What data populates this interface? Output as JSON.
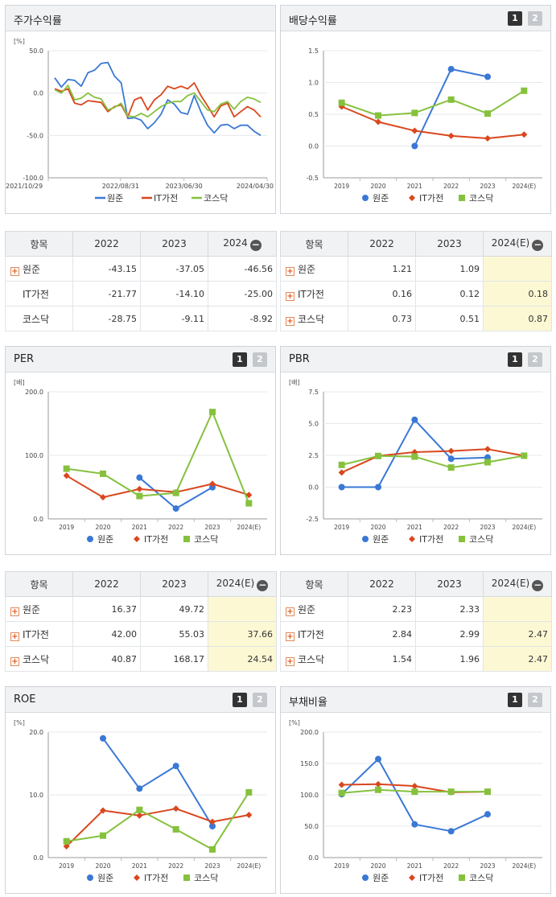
{
  "panels": {
    "stock_return": {
      "title": "주가수익률",
      "unit": "[%]"
    },
    "dividend": {
      "title": "배당수익률",
      "unit": ""
    },
    "per": {
      "title": "PER",
      "unit": "[배]"
    },
    "pbr": {
      "title": "PBR",
      "unit": "[배]"
    },
    "roe": {
      "title": "ROE",
      "unit": "[%]"
    },
    "debt": {
      "title": "부채비율",
      "unit": "[%]"
    }
  },
  "pager": {
    "one": "1",
    "two": "2"
  },
  "tables": {
    "stock_return": {
      "headers": [
        "항목",
        "2022",
        "2023",
        "2024"
      ],
      "rows": [
        {
          "name": "원준",
          "expand": true,
          "v": [
            "-43.15",
            "-37.05",
            "-46.56"
          ]
        },
        {
          "name": "IT가전",
          "expand": false,
          "v": [
            "-21.77",
            "-14.10",
            "-25.00"
          ]
        },
        {
          "name": "코스닥",
          "expand": false,
          "v": [
            "-28.75",
            "-9.11",
            "-8.92"
          ]
        }
      ]
    },
    "dividend": {
      "headers": [
        "항목",
        "2022",
        "2023",
        "2024(E)"
      ],
      "rows": [
        {
          "name": "원준",
          "expand": true,
          "v": [
            "1.21",
            "1.09",
            ""
          ]
        },
        {
          "name": "IT가전",
          "expand": true,
          "v": [
            "0.16",
            "0.12",
            "0.18"
          ]
        },
        {
          "name": "코스닥",
          "expand": true,
          "v": [
            "0.73",
            "0.51",
            "0.87"
          ]
        }
      ]
    },
    "per": {
      "headers": [
        "항목",
        "2022",
        "2023",
        "2024(E)"
      ],
      "rows": [
        {
          "name": "원준",
          "expand": true,
          "v": [
            "16.37",
            "49.72",
            ""
          ]
        },
        {
          "name": "IT가전",
          "expand": true,
          "v": [
            "42.00",
            "55.03",
            "37.66"
          ]
        },
        {
          "name": "코스닥",
          "expand": true,
          "v": [
            "40.87",
            "168.17",
            "24.54"
          ]
        }
      ]
    },
    "pbr": {
      "headers": [
        "항목",
        "2022",
        "2023",
        "2024(E)"
      ],
      "rows": [
        {
          "name": "원준",
          "expand": true,
          "v": [
            "2.23",
            "2.33",
            ""
          ]
        },
        {
          "name": "IT가전",
          "expand": true,
          "v": [
            "2.84",
            "2.99",
            "2.47"
          ]
        },
        {
          "name": "코스닥",
          "expand": true,
          "v": [
            "1.54",
            "1.96",
            "2.47"
          ]
        }
      ]
    }
  },
  "chart_data": [
    {
      "id": "stock_return",
      "type": "line",
      "ylim": [
        -100,
        50
      ],
      "yticks": [
        "50.0",
        "0.0",
        "-50.0",
        "-100.0"
      ],
      "xticks": [
        "2021/10/29",
        "2022/08/31",
        "2023/06/30",
        "2024/04/30"
      ],
      "series": [
        {
          "name": "원준",
          "color": "#3a78d6",
          "values": [
            18,
            7,
            16,
            15,
            8,
            24,
            27,
            35,
            36,
            20,
            12,
            -30,
            -29,
            -32,
            -42,
            -35,
            -25,
            -8,
            -13,
            -23,
            -25,
            -3,
            -22,
            -38,
            -47,
            -38,
            -37,
            -42,
            -38,
            -38,
            -45,
            -50
          ]
        },
        {
          "name": "IT가전",
          "color": "#d9471e",
          "values": [
            5,
            2,
            5,
            -12,
            -14,
            -9,
            -10,
            -11,
            -22,
            -16,
            -14,
            -28,
            -8,
            -5,
            -20,
            -8,
            -2,
            8,
            5,
            8,
            5,
            12,
            -3,
            -15,
            -28,
            -15,
            -12,
            -28,
            -22,
            -16,
            -20,
            -28
          ]
        },
        {
          "name": "코스닥",
          "color": "#86c13d",
          "values": [
            4,
            0,
            9,
            -8,
            -6,
            0,
            -5,
            -7,
            -20,
            -17,
            -12,
            -27,
            -28,
            -24,
            -28,
            -22,
            -16,
            -12,
            -10,
            -10,
            -3,
            0,
            -10,
            -20,
            -22,
            -13,
            -10,
            -19,
            -10,
            -5,
            -7,
            -11
          ]
        }
      ]
    },
    {
      "id": "dividend",
      "type": "line",
      "ylim": [
        -0.5,
        1.5
      ],
      "yticks": [
        "1.5",
        "1.0",
        "0.5",
        "0.0",
        "-0.5"
      ],
      "categories": [
        "2019",
        "2020",
        "2021",
        "2022",
        "2023",
        "2024(E)"
      ],
      "series": [
        {
          "name": "원준",
          "color": "#3a78d6",
          "marker": "circle",
          "values": [
            null,
            null,
            0.0,
            1.21,
            1.09,
            null
          ]
        },
        {
          "name": "IT가전",
          "color": "#d9471e",
          "marker": "diamond",
          "values": [
            0.62,
            0.38,
            0.24,
            0.16,
            0.12,
            0.18
          ]
        },
        {
          "name": "코스닥",
          "color": "#86c13d",
          "marker": "square",
          "values": [
            0.68,
            0.48,
            0.52,
            0.73,
            0.51,
            0.87
          ]
        }
      ]
    },
    {
      "id": "per",
      "type": "line",
      "ylim": [
        0,
        200
      ],
      "yticks": [
        "200.0",
        "100.0",
        "0.0"
      ],
      "categories": [
        "2019",
        "2020",
        "2021",
        "2022",
        "2023",
        "2024(E)"
      ],
      "series": [
        {
          "name": "원준",
          "color": "#3a78d6",
          "marker": "circle",
          "values": [
            null,
            null,
            65,
            16.37,
            49.72,
            null
          ]
        },
        {
          "name": "IT가전",
          "color": "#d9471e",
          "marker": "diamond",
          "values": [
            68,
            34,
            47,
            42.0,
            55.03,
            37.66
          ]
        },
        {
          "name": "코스닥",
          "color": "#86c13d",
          "marker": "square",
          "values": [
            79,
            71,
            36,
            40.87,
            168.17,
            24.54
          ]
        }
      ]
    },
    {
      "id": "pbr",
      "type": "line",
      "ylim": [
        -2.5,
        7.5
      ],
      "yticks": [
        "7.5",
        "5.0",
        "2.5",
        "0.0",
        "-2.5"
      ],
      "categories": [
        "2019",
        "2020",
        "2021",
        "2022",
        "2023",
        "2024(E)"
      ],
      "series": [
        {
          "name": "원준",
          "color": "#3a78d6",
          "marker": "circle",
          "values": [
            0.0,
            0.0,
            5.3,
            2.23,
            2.33,
            null
          ]
        },
        {
          "name": "IT가전",
          "color": "#d9471e",
          "marker": "diamond",
          "values": [
            1.15,
            2.45,
            2.75,
            2.84,
            2.99,
            2.47
          ]
        },
        {
          "name": "코스닥",
          "color": "#86c13d",
          "marker": "square",
          "values": [
            1.75,
            2.45,
            2.4,
            1.54,
            1.96,
            2.47
          ]
        }
      ]
    },
    {
      "id": "roe",
      "type": "line",
      "ylim": [
        0,
        20
      ],
      "yticks": [
        "20.0",
        "10.0",
        "0.0"
      ],
      "categories": [
        "2019",
        "2020",
        "2021",
        "2022",
        "2023",
        "2024(E)"
      ],
      "series": [
        {
          "name": "원준",
          "color": "#3a78d6",
          "marker": "circle",
          "values": [
            null,
            19.0,
            11.0,
            14.6,
            5.0,
            null
          ]
        },
        {
          "name": "IT가전",
          "color": "#d9471e",
          "marker": "diamond",
          "values": [
            1.8,
            7.5,
            6.7,
            7.8,
            5.7,
            6.8
          ]
        },
        {
          "name": "코스닥",
          "color": "#86c13d",
          "marker": "square",
          "values": [
            2.6,
            3.5,
            7.6,
            4.5,
            1.3,
            10.4
          ]
        }
      ]
    },
    {
      "id": "debt",
      "type": "line",
      "ylim": [
        0,
        200
      ],
      "yticks": [
        "200.0",
        "150.0",
        "100.0",
        "50.0",
        "0.0"
      ],
      "categories": [
        "2019",
        "2020",
        "2021",
        "2022",
        "2023",
        "2024(E)"
      ],
      "series": [
        {
          "name": "원준",
          "color": "#3a78d6",
          "marker": "circle",
          "values": [
            101,
            157,
            53,
            42,
            69,
            null
          ]
        },
        {
          "name": "IT가전",
          "color": "#d9471e",
          "marker": "diamond",
          "values": [
            116,
            117,
            114,
            104,
            105,
            null
          ]
        },
        {
          "name": "코스닥",
          "color": "#86c13d",
          "marker": "square",
          "values": [
            103,
            108,
            105,
            105,
            105,
            null
          ]
        }
      ]
    }
  ]
}
